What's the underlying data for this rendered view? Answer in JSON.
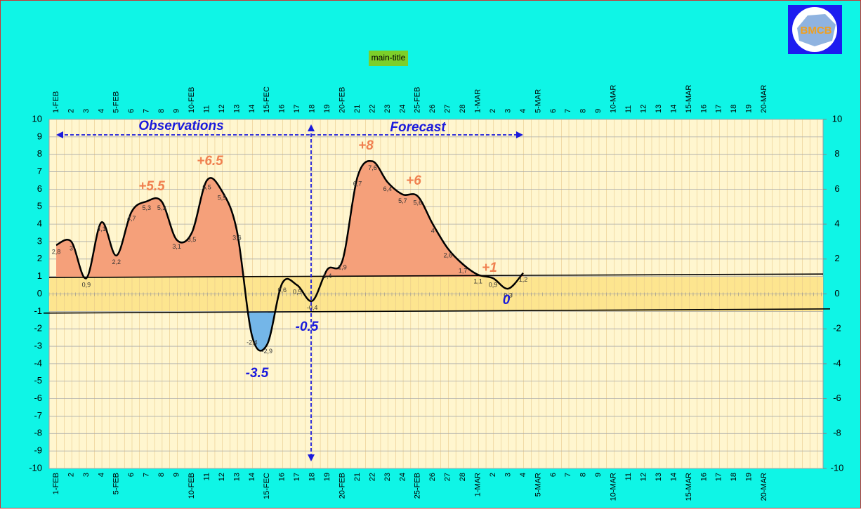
{
  "chart_data": {
    "type": "line",
    "title": "main-title",
    "logo": "BMCB",
    "categories": [
      "1-FEB",
      "2",
      "3",
      "4",
      "5-FEB",
      "6",
      "7",
      "8",
      "9",
      "10-FEB",
      "11",
      "12",
      "13",
      "14",
      "15-FEC",
      "16",
      "17",
      "18",
      "19",
      "20-FEB",
      "21",
      "22",
      "23",
      "24",
      "25-FEB",
      "26",
      "27",
      "28",
      "1-MAR",
      "2",
      "3",
      "4",
      "5-MAR",
      "6",
      "7",
      "8",
      "9",
      "10-MAR",
      "11",
      "12",
      "13",
      "14",
      "15-MAR",
      "16",
      "17",
      "18",
      "19",
      "20-MAR"
    ],
    "values": [
      2.8,
      3,
      0.9,
      4.1,
      2.2,
      4.7,
      5.3,
      5.3,
      3.1,
      3.5,
      6.5,
      5.9,
      3.6,
      -2.4,
      -2.9,
      0.6,
      0.5,
      -0.4,
      1.4,
      1.9,
      6.7,
      7.6,
      6.4,
      5.7,
      5.6,
      4,
      2.6,
      1.7,
      1.1,
      0.9,
      0.3,
      1.2,
      null,
      null,
      null,
      null,
      null,
      null,
      null,
      null,
      null,
      null,
      null,
      null,
      null,
      null,
      null,
      null
    ],
    "value_labels": [
      "2,8",
      "3",
      "0,9",
      "4,1",
      "2,2",
      "4,7",
      "5,3",
      "5,3",
      "3,1",
      "3,5",
      "6,5",
      "5,9",
      "3,6",
      "-2,4",
      "-2,9",
      "0,6",
      "0,5",
      "-0,4",
      "1,4",
      "1,9",
      "6,7",
      "7,6",
      "6,4",
      "5,7",
      "5,6",
      "4",
      "2,6",
      "1,7",
      "1,1",
      "0,9",
      "0,3",
      "1,2",
      null,
      null,
      null,
      null,
      null,
      null,
      null,
      null,
      null,
      null,
      null,
      null,
      null,
      null,
      null,
      null
    ],
    "color": "#000000",
    "ylim": [
      -10,
      10
    ],
    "yticks": [
      -10,
      -9,
      -8,
      -7,
      -6,
      -5,
      -4,
      -3,
      -2,
      -1,
      0,
      1,
      2,
      3,
      4,
      5,
      6,
      7,
      8,
      9,
      10
    ],
    "y2lim": [
      -10,
      10
    ],
    "y2ticks": [
      -10,
      -8,
      -6,
      -4,
      -2,
      0,
      2,
      4,
      6,
      8,
      10
    ],
    "grid": true,
    "annotations": [
      "Observations",
      "Forecast",
      "+5.5",
      "+6.5",
      "+8",
      "+6",
      "+1",
      "-3.5",
      "-0.5",
      "0"
    ]
  }
}
